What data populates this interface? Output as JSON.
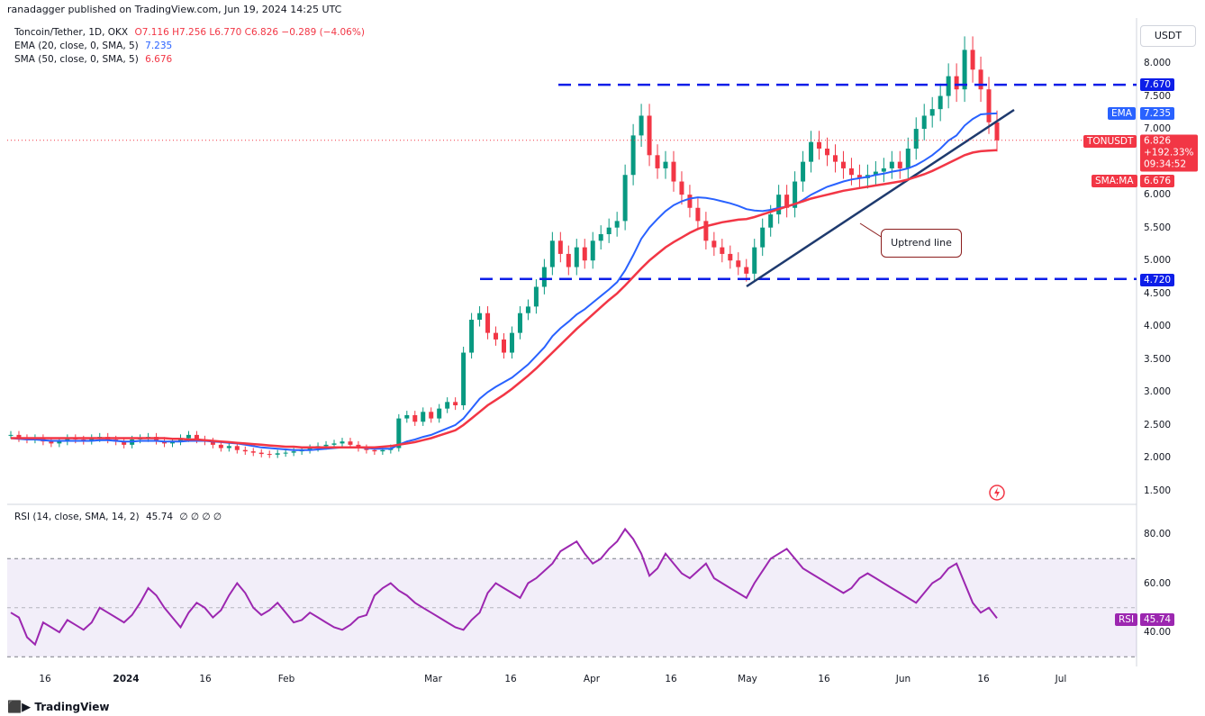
{
  "header": {
    "publisher_line": "ranadagger published on TradingView.com, Jun 19, 2024 14:25 UTC"
  },
  "legend": {
    "symbol": "Toncoin/Tether, 1D, OKX",
    "ohlc": "O7.116 H7.256 L6.770 C6.826 −0.289 (−4.06%)",
    "ema_label": "EMA (20, close, 0, SMA, 5)",
    "ema_value": "7.235",
    "sma_label": "SMA (50, close, 0, SMA, 5)",
    "sma_value": "6.676",
    "rsi_label": "RSI (14, close, SMA, 14, 2)",
    "rsi_value": "45.74",
    "rsi_extra": "∅ ∅ ∅ ∅"
  },
  "unit": "USDT",
  "branding": "TradingView",
  "colors": {
    "up": "#089981",
    "down": "#f23645",
    "ema": "#2962ff",
    "sma": "#f23645",
    "rsi": "#9c27b0",
    "level": "#0d1ee8",
    "trend": "#1e3a6e"
  },
  "tags": {
    "level_high": "7.670",
    "ema_tag": "EMA",
    "ema_val": "7.235",
    "ton_tag": "TONUSDT",
    "ton_price": "6.826",
    "ton_change": "+192.33%",
    "ton_timer": "09:34:52",
    "sma_tag": "SMA:MA",
    "sma_val": "6.676",
    "level_low": "4.720",
    "rsi_tag": "RSI",
    "rsi_val": "45.74"
  },
  "annotation": "Uptrend line",
  "chart_data": [
    {
      "type": "line",
      "title": "Toncoin/Tether, 1D, OKX",
      "x_ticks": [
        "16",
        "2024",
        "16",
        "Feb",
        "Mar",
        "16",
        "Apr",
        "16",
        "May",
        "16",
        "Jun",
        "16",
        "Jul"
      ],
      "y_ticks": [
        "8.000",
        "7.500",
        "7.000",
        "6.500",
        "6.000",
        "5.500",
        "5.000",
        "4.500",
        "4.000",
        "3.500",
        "3.000",
        "2.500",
        "2.000",
        "1.500"
      ],
      "ylim": [
        1.5,
        8.2
      ],
      "horizontal_levels": [
        7.67,
        4.72
      ],
      "grid": false,
      "price_close": [
        2.35,
        2.3,
        2.28,
        2.3,
        2.25,
        2.22,
        2.25,
        2.3,
        2.28,
        2.26,
        2.3,
        2.32,
        2.28,
        2.25,
        2.2,
        2.28,
        2.3,
        2.32,
        2.26,
        2.22,
        2.25,
        2.3,
        2.35,
        2.28,
        2.25,
        2.2,
        2.15,
        2.18,
        2.12,
        2.1,
        2.08,
        2.06,
        2.05,
        2.07,
        2.08,
        2.1,
        2.12,
        2.15,
        2.18,
        2.2,
        2.22,
        2.25,
        2.2,
        2.15,
        2.12,
        2.1,
        2.12,
        2.15,
        2.6,
        2.65,
        2.55,
        2.7,
        2.6,
        2.75,
        2.85,
        2.8,
        3.6,
        4.1,
        4.2,
        3.9,
        3.8,
        3.6,
        3.9,
        4.2,
        4.3,
        4.6,
        4.9,
        5.3,
        5.1,
        4.9,
        5.2,
        5.0,
        5.3,
        5.4,
        5.5,
        5.6,
        6.3,
        6.9,
        7.2,
        6.6,
        6.4,
        6.5,
        6.2,
        6.0,
        5.8,
        5.6,
        5.3,
        5.2,
        5.1,
        5.0,
        4.9,
        4.8,
        5.2,
        5.5,
        5.7,
        6.0,
        5.8,
        6.2,
        6.5,
        6.8,
        6.7,
        6.6,
        6.5,
        6.4,
        6.3,
        6.25,
        6.3,
        6.35,
        6.4,
        6.5,
        6.4,
        6.7,
        7.0,
        7.2,
        7.3,
        7.5,
        7.8,
        7.6,
        8.2,
        7.9,
        7.6,
        7.1,
        6.826
      ],
      "series": [
        {
          "name": "EMA",
          "values": [
            2.3,
            2.29,
            2.28,
            2.28,
            2.27,
            2.26,
            2.26,
            2.26,
            2.26,
            2.26,
            2.26,
            2.27,
            2.27,
            2.26,
            2.25,
            2.25,
            2.26,
            2.26,
            2.26,
            2.25,
            2.25,
            2.25,
            2.26,
            2.26,
            2.26,
            2.25,
            2.24,
            2.23,
            2.22,
            2.2,
            2.18,
            2.16,
            2.15,
            2.14,
            2.13,
            2.12,
            2.12,
            2.12,
            2.13,
            2.14,
            2.15,
            2.16,
            2.16,
            2.16,
            2.15,
            2.14,
            2.14,
            2.14,
            2.2,
            2.25,
            2.28,
            2.32,
            2.35,
            2.4,
            2.45,
            2.5,
            2.6,
            2.75,
            2.9,
            3.0,
            3.08,
            3.15,
            3.22,
            3.32,
            3.42,
            3.55,
            3.68,
            3.85,
            3.97,
            4.07,
            4.18,
            4.26,
            4.36,
            4.46,
            4.56,
            4.67,
            4.85,
            5.08,
            5.33,
            5.5,
            5.63,
            5.75,
            5.84,
            5.9,
            5.94,
            5.96,
            5.95,
            5.93,
            5.9,
            5.87,
            5.83,
            5.78,
            5.76,
            5.75,
            5.77,
            5.8,
            5.82,
            5.85,
            5.92,
            6.0,
            6.06,
            6.12,
            6.16,
            6.2,
            6.23,
            6.25,
            6.27,
            6.3,
            6.32,
            6.35,
            6.37,
            6.4,
            6.45,
            6.52,
            6.6,
            6.7,
            6.82,
            6.9,
            7.05,
            7.15,
            7.22,
            7.23,
            7.235
          ]
        },
        {
          "name": "SMA",
          "values": [
            2.3,
            2.3,
            2.3,
            2.3,
            2.3,
            2.3,
            2.3,
            2.3,
            2.3,
            2.3,
            2.3,
            2.3,
            2.3,
            2.3,
            2.3,
            2.3,
            2.3,
            2.3,
            2.3,
            2.3,
            2.29,
            2.29,
            2.28,
            2.28,
            2.27,
            2.26,
            2.25,
            2.24,
            2.23,
            2.22,
            2.21,
            2.2,
            2.19,
            2.18,
            2.17,
            2.17,
            2.16,
            2.16,
            2.16,
            2.16,
            2.16,
            2.16,
            2.16,
            2.16,
            2.16,
            2.16,
            2.17,
            2.18,
            2.2,
            2.22,
            2.24,
            2.27,
            2.3,
            2.34,
            2.38,
            2.42,
            2.5,
            2.6,
            2.7,
            2.8,
            2.88,
            2.96,
            3.05,
            3.15,
            3.25,
            3.36,
            3.48,
            3.6,
            3.72,
            3.84,
            3.96,
            4.07,
            4.18,
            4.29,
            4.4,
            4.5,
            4.62,
            4.75,
            4.88,
            5.0,
            5.1,
            5.2,
            5.28,
            5.35,
            5.42,
            5.48,
            5.52,
            5.55,
            5.58,
            5.6,
            5.62,
            5.63,
            5.66,
            5.7,
            5.74,
            5.78,
            5.82,
            5.86,
            5.9,
            5.94,
            5.97,
            6.0,
            6.03,
            6.06,
            6.08,
            6.1,
            6.12,
            6.14,
            6.16,
            6.18,
            6.2,
            6.23,
            6.27,
            6.31,
            6.36,
            6.42,
            6.48,
            6.54,
            6.6,
            6.64,
            6.66,
            6.67,
            6.676
          ]
        }
      ]
    },
    {
      "type": "line",
      "title": "RSI (14, close, SMA, 14, 2)",
      "y_ticks": [
        "80.00",
        "60.00",
        "40.00"
      ],
      "ylim": [
        25,
        92
      ],
      "band": [
        30,
        70
      ],
      "mid": 50,
      "series": [
        {
          "name": "RSI",
          "values": [
            48,
            46,
            38,
            35,
            44,
            42,
            40,
            45,
            43,
            41,
            44,
            50,
            48,
            46,
            44,
            47,
            52,
            58,
            55,
            50,
            46,
            42,
            48,
            52,
            50,
            46,
            49,
            55,
            60,
            56,
            50,
            47,
            49,
            52,
            48,
            44,
            45,
            48,
            46,
            44,
            42,
            41,
            43,
            46,
            47,
            55,
            58,
            60,
            57,
            55,
            52,
            50,
            48,
            46,
            44,
            42,
            41,
            45,
            48,
            56,
            60,
            58,
            56,
            54,
            60,
            62,
            65,
            68,
            73,
            75,
            77,
            72,
            68,
            70,
            74,
            77,
            82,
            78,
            72,
            63,
            66,
            72,
            68,
            64,
            62,
            65,
            68,
            62,
            60,
            58,
            56,
            54,
            60,
            65,
            70,
            72,
            74,
            70,
            66,
            64,
            62,
            60,
            58,
            56,
            58,
            62,
            64,
            62,
            60,
            58,
            56,
            54,
            52,
            56,
            60,
            62,
            66,
            68,
            60,
            52,
            48,
            50,
            45.74
          ]
        }
      ]
    }
  ]
}
